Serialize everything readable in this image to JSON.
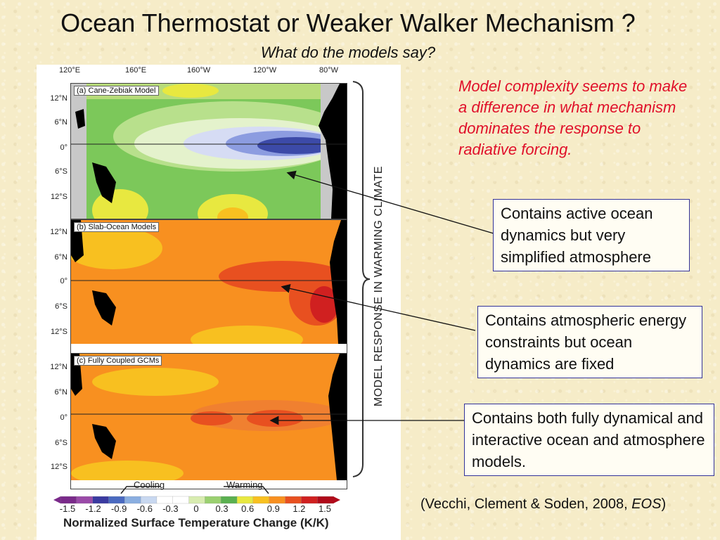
{
  "title": "Ocean Thermostat or Weaker Walker Mechanism ?",
  "subtitle": "What do the models say?",
  "red_note": "Model complexity seems to make a difference in what mechanism dominates the response to radiative forcing.",
  "boxes": [
    "Contains active ocean dynamics but very simplified atmosphere",
    "Contains atmospheric energy constraints but ocean dynamics are fixed",
    "Contains both fully dynamical and interactive ocean and atmosphere models."
  ],
  "citation": {
    "text": "(Vecchi, Clement & Soden, 2008, ",
    "italic": "EOS",
    "end": ")"
  },
  "figure": {
    "lon_labels": [
      "120°E",
      "160°E",
      "160°W",
      "120°W",
      "80°W"
    ],
    "lat_labels": [
      "12°N",
      "6°N",
      "0°",
      "6°S",
      "12°S"
    ],
    "panels": [
      {
        "label": "(a) Cane-Zebiak Model",
        "colors": {
          "land": "#000000",
          "mask": "#c8c8c8"
        }
      },
      {
        "label": "(b) Slab-Ocean Models",
        "colors": {
          "land": "#000000"
        }
      },
      {
        "label": "(c) Fully Coupled GCMs",
        "colors": {
          "land": "#000000"
        }
      }
    ],
    "bracket_label": "MODEL RESPONSE IN WARMING CLIMATE",
    "colorbar": {
      "ticks": [
        "-1.5",
        "-1.2",
        "-0.9",
        "-0.6",
        "-0.3",
        "0",
        "0.3",
        "0.6",
        "0.9",
        "1.2",
        "1.5"
      ],
      "cooling_label": "Cooling",
      "warming_label": "Warming",
      "title": "Normalized Surface Temperature Change (K/K)",
      "colors": [
        "#7a2a8a",
        "#9a4aa8",
        "#3a3aa0",
        "#4a6ac0",
        "#8aaee0",
        "#c8d8f0",
        "#ffffff",
        "#ffffff",
        "#d8ecb0",
        "#9ad070",
        "#5ab050",
        "#e8e840",
        "#f8c020",
        "#f89020",
        "#e85020",
        "#d02020",
        "#b00a1a"
      ]
    }
  },
  "colors": {
    "red_note": "#e0102a",
    "box_border": "#333399"
  }
}
